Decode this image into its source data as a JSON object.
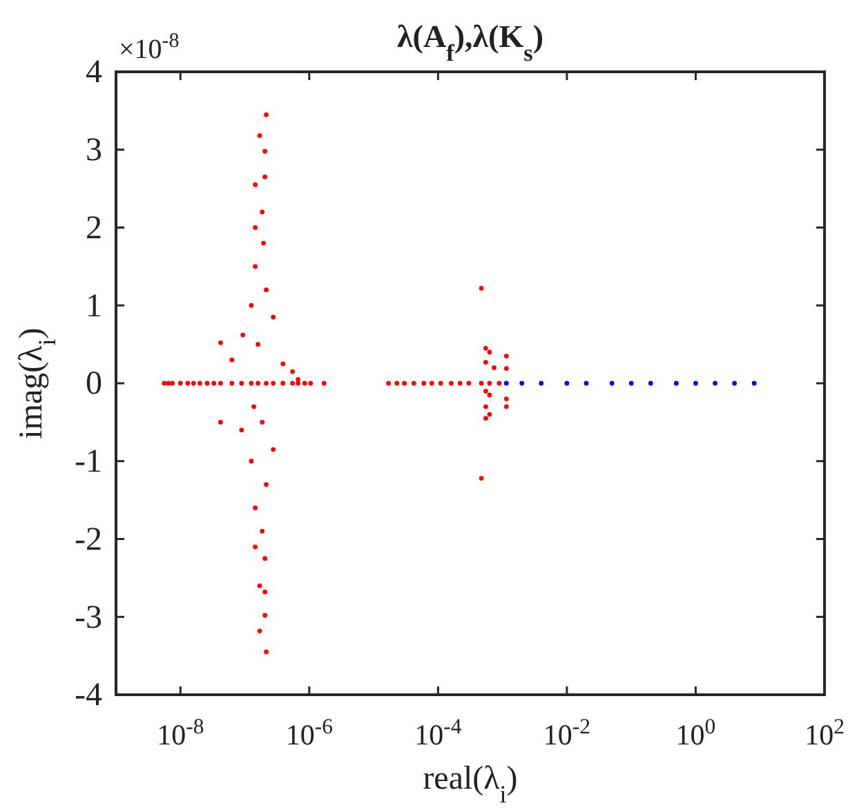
{
  "chart_data": {
    "type": "scatter",
    "title": "λ(A$_{f}$),λ(K$_{s}$)",
    "xlabel": "real(λ$_{i}$)",
    "ylabel": "imag(λ$_{i}$)",
    "annotations": [
      "×10$^{-8}$"
    ],
    "log": "x",
    "marker": "circle",
    "grid": false,
    "xlim": [
      1e-09,
      100
    ],
    "ylim": [
      -4,
      4
    ],
    "xticks": [
      {
        "value": 1e-08,
        "label": "10$^{-8}$"
      },
      {
        "value": 1e-06,
        "label": "10$^{-6}$"
      },
      {
        "value": 0.0001,
        "label": "10$^{-4}$"
      },
      {
        "value": 0.01,
        "label": "10$^{-2}$"
      },
      {
        "value": 1,
        "label": "10$^{0}$"
      },
      {
        "value": 100,
        "label": "10$^{2}$"
      }
    ],
    "yticks": [
      -4,
      -3,
      -2,
      -1,
      0,
      1,
      2,
      3,
      4
    ],
    "series": [
      {
        "color": "#ff0000",
        "x": [
          5.6e-09,
          6.5e-09,
          7.5e-09,
          1e-08,
          1.3e-08,
          1.6e-08,
          2e-08,
          2.6e-08,
          3.3e-08,
          4.2e-08,
          6.3e-08,
          8.9e-08,
          1.26e-07,
          1.6e-07,
          2.15e-07,
          2.76e-07,
          3.9e-07,
          5.5e-07,
          6.7e-07,
          8.5e-07,
          1.05e-06,
          1.7e-06,
          2.15e-07,
          1.7e-07,
          2.05e-07,
          2.05e-07,
          1.45e-07,
          1.86e-07,
          1.45e-07,
          1.95e-07,
          1.45e-07,
          2.15e-07,
          1.26e-07,
          2.76e-07,
          9.3e-08,
          4.2e-08,
          6.3e-08,
          3.9e-07,
          5.5e-07,
          6.7e-07,
          1.6e-07,
          1.86e-07,
          1.38e-07,
          4.2e-08,
          8.9e-08,
          2.76e-07,
          1.26e-07,
          2.15e-07,
          1.45e-07,
          1.86e-07,
          1.45e-07,
          2.05e-07,
          1.7e-07,
          2.05e-07,
          2.05e-07,
          1.7e-07,
          2.15e-07,
          1.7e-05,
          2.3e-05,
          3e-05,
          4.2e-05,
          6e-05,
          8e-05,
          0.00011,
          0.00016,
          0.00022,
          0.0003,
          0.00047,
          0.00063,
          0.00089,
          0.00047,
          0.00055,
          0.00063,
          0.00055,
          0.00115,
          0.00115,
          0.00074,
          0.00055,
          0.00063,
          0.00115,
          0.00055,
          0.00063,
          0.00055,
          0.00115,
          0.00047
        ],
        "values": [
          0,
          0,
          0,
          0,
          0,
          0,
          0,
          0,
          0,
          0,
          0,
          0,
          0,
          0,
          0,
          0,
          0,
          0,
          0,
          0,
          0,
          0,
          3.45,
          3.18,
          2.98,
          2.65,
          2.55,
          2.2,
          2.0,
          1.8,
          1.5,
          1.2,
          1.0,
          0.85,
          0.62,
          0.52,
          0.3,
          0.25,
          0.15,
          0.05,
          0.5,
          -0.5,
          -0.3,
          -0.5,
          -0.6,
          -0.85,
          -1.0,
          -1.3,
          -1.6,
          -1.9,
          -2.1,
          -2.25,
          -2.6,
          -2.68,
          -2.98,
          -3.18,
          -3.45,
          0,
          0,
          0,
          0,
          0,
          0,
          0,
          0,
          0,
          0,
          0,
          0,
          0,
          1.22,
          0.45,
          0.4,
          0.27,
          0.35,
          0.19,
          0.2,
          -0.1,
          -0.15,
          -0.2,
          -0.3,
          -0.4,
          -0.45,
          -0.3,
          -1.22
        ]
      },
      {
        "color": "#0000ff",
        "x": [
          0.00115,
          0.002,
          0.004,
          0.01,
          0.02,
          0.05,
          0.1,
          0.2,
          0.5,
          1,
          2,
          4,
          8.1
        ],
        "values": [
          0,
          0,
          0,
          0,
          0,
          0,
          0,
          0,
          0,
          0,
          0,
          0,
          0
        ]
      }
    ]
  }
}
